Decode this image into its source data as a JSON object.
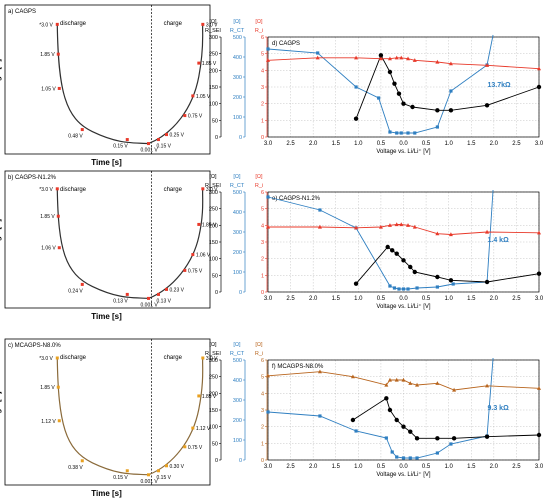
{
  "figure": {
    "volt_xlabel": "Time [s]",
    "volt_ylabel": "Voltage [V]",
    "imp_xlabel": "Voltage vs. Li/Li⁺ [V]",
    "axis_unit_labels": [
      "[Ω]",
      "[Ω]",
      "[Ω]"
    ],
    "axis_names": [
      "Rₐₑₗ",
      "Rₓₜ",
      "Rᵢ"
    ],
    "axis_name_text": [
      "R_SEI",
      "R_CT",
      "R_i"
    ],
    "colors": {
      "black": "#000000",
      "blue": "#2f7fc1",
      "red": "#e8392a",
      "orange": "#b8651e",
      "grid": "#b4b4b4",
      "left_curve": "#303030",
      "left_curve_c": "#8a6a3a"
    }
  },
  "chart_data": [
    {
      "type": "line",
      "title": "a) CAGPS",
      "region_labels": [
        "discharge",
        "charge"
      ],
      "marker_color": "#e8392a",
      "discharge_labels": [
        "*3.0 V",
        "1.85 V",
        "1.05 V",
        "0.48 V",
        "0.15 V"
      ],
      "charge_labels": [
        "0.001 V",
        "0.15 V",
        "0.25 V",
        "0.75 V",
        "1.05 V",
        "1.85 V",
        "3.0 V"
      ],
      "xlabel": "Time [s]",
      "ylabel": "Voltage [V]"
    },
    {
      "type": "line",
      "title": "d) CAGPS",
      "xlabel": "Voltage vs. Li/Li⁺ [V]",
      "x_ticks": [
        "3.0",
        "2.5",
        "2.0",
        "1.5",
        "1.0",
        "0.5",
        "0.0",
        "0.5",
        "1.0",
        "1.5",
        "2.0",
        "2.5",
        "3.0"
      ],
      "ylim_sei": [
        0,
        300
      ],
      "ylim_ct": [
        0,
        500
      ],
      "ylim_i": [
        0,
        6
      ],
      "annotation": "13.7kΩ",
      "series": [
        {
          "axis": "ct",
          "x": [
            3.0,
            1.9,
            1.05,
            0.55,
            0.3,
            0.15,
            0.05,
            -0.1,
            -0.25,
            -0.75,
            -1.05,
            -1.85
          ],
          "y": [
            440,
            420,
            250,
            195,
            25,
            20,
            20,
            20,
            20,
            50,
            230,
            360
          ]
        },
        {
          "axis": "sei",
          "x": [
            1.05,
            0.5,
            0.3,
            0.2,
            0.1,
            0.0,
            -0.2,
            -0.75,
            -1.05,
            -1.85,
            -3.0
          ],
          "y": [
            55,
            245,
            195,
            160,
            130,
            100,
            90,
            80,
            80,
            95,
            150
          ]
        },
        {
          "axis": "i",
          "x": [
            3.0,
            1.9,
            1.05,
            0.5,
            0.3,
            0.15,
            0.05,
            -0.1,
            -0.25,
            -0.75,
            -1.05,
            -1.85,
            -3.0
          ],
          "y": [
            4.6,
            4.75,
            4.75,
            4.7,
            4.7,
            4.75,
            4.75,
            4.7,
            4.6,
            4.5,
            4.4,
            4.3,
            4.1
          ]
        }
      ]
    },
    {
      "type": "line",
      "title": "b) CAGPS-N1.2%",
      "region_labels": [
        "discharge",
        "charge"
      ],
      "marker_color": "#e8392a",
      "discharge_labels": [
        "*3.0 V",
        "1.85 V",
        "1.06 V",
        "0.24 V",
        "0.13 V"
      ],
      "charge_labels": [
        "0.001 V",
        "0.13 V",
        "0.23 V",
        "0.75 V",
        "1.06 V",
        "1.85 V",
        "3.0 V"
      ],
      "xlabel": "Time [s]",
      "ylabel": "Voltage [V]"
    },
    {
      "type": "line",
      "title": "e) CAGPS-N1.2%",
      "xlabel": "Voltage vs. Li/Li⁺ [V]",
      "x_ticks": [
        "3.0",
        "2.5",
        "2.0",
        "1.5",
        "1.0",
        "0.5",
        "0.0",
        "0.5",
        "1.0",
        "1.5",
        "2.0",
        "2.5",
        "3.0"
      ],
      "ylim_sei": [
        0,
        300
      ],
      "ylim_ct": [
        0,
        500
      ],
      "ylim_i": [
        0,
        6
      ],
      "annotation": "1.4 kΩ",
      "series": [
        {
          "axis": "ct",
          "x": [
            3.0,
            1.85,
            1.05,
            0.3,
            0.2,
            0.1,
            0.0,
            -0.1,
            -0.3,
            -0.75,
            -1.1,
            -1.85
          ],
          "y": [
            475,
            410,
            320,
            30,
            20,
            15,
            15,
            15,
            20,
            25,
            40,
            50
          ]
        },
        {
          "axis": "sei",
          "x": [
            1.05,
            0.35,
            0.25,
            0.15,
            0.0,
            -0.15,
            -0.25,
            -0.75,
            -1.05,
            -1.85,
            -3.0
          ],
          "y": [
            25,
            135,
            125,
            115,
            95,
            75,
            60,
            45,
            35,
            30,
            55
          ]
        },
        {
          "axis": "i",
          "x": [
            3.0,
            1.85,
            1.05,
            0.5,
            0.3,
            0.15,
            0.05,
            -0.1,
            -0.25,
            -0.75,
            -1.05,
            -1.85,
            -3.0
          ],
          "y": [
            3.9,
            3.9,
            3.85,
            3.9,
            4.0,
            4.05,
            4.05,
            4.0,
            3.9,
            3.5,
            3.45,
            3.6,
            3.55
          ]
        }
      ]
    },
    {
      "type": "line",
      "title": "c) MCAGPS-N8.0%",
      "region_labels": [
        "discharge",
        "charge"
      ],
      "marker_color": "#e8a020",
      "discharge_labels": [
        "*3.0 V",
        "1.85 V",
        "1.12 V",
        "0.38 V",
        "0.15 V"
      ],
      "charge_labels": [
        "0.001 V",
        "0.15 V",
        "0.30 V",
        "0.75 V",
        "1.12 V",
        "1.85 V",
        "3.0 V"
      ],
      "xlabel": "Time [s]",
      "ylabel": "Voltage [V]"
    },
    {
      "type": "line",
      "title": "f) MCAGPS-N8.0%",
      "xlabel": "Voltage vs. Li/Li⁺ [V]",
      "x_ticks": [
        "3.0",
        "2.5",
        "2.0",
        "1.5",
        "1.0",
        "0.5",
        "0.0",
        "0.5",
        "1.0",
        "1.5",
        "2.0",
        "2.5",
        "3.0"
      ],
      "ylim_sei": [
        0,
        300
      ],
      "ylim_ct": [
        0,
        500
      ],
      "ylim_i": [
        0,
        6
      ],
      "annotation": "9.3 kΩ",
      "series": [
        {
          "axis": "ct",
          "x": [
            3.0,
            1.85,
            1.05,
            0.38,
            0.25,
            0.15,
            0.0,
            -0.15,
            -0.3,
            -0.75,
            -1.05,
            -1.85
          ],
          "y": [
            240,
            220,
            145,
            110,
            40,
            15,
            10,
            10,
            10,
            35,
            80,
            120
          ]
        },
        {
          "axis": "sei",
          "x": [
            1.12,
            0.38,
            0.3,
            0.15,
            0.0,
            -0.15,
            -0.3,
            -0.75,
            -1.12,
            -1.85,
            -3.0
          ],
          "y": [
            120,
            185,
            150,
            120,
            100,
            85,
            65,
            65,
            65,
            70,
            75
          ]
        },
        {
          "axis": "i",
          "x": [
            3.0,
            1.85,
            1.12,
            0.38,
            0.3,
            0.15,
            0.0,
            -0.15,
            -0.3,
            -0.75,
            -1.12,
            -1.85,
            -3.0
          ],
          "y": [
            5.05,
            5.3,
            5.0,
            4.5,
            4.8,
            4.8,
            4.8,
            4.6,
            4.5,
            4.6,
            4.2,
            4.45,
            4.3
          ]
        }
      ]
    }
  ]
}
